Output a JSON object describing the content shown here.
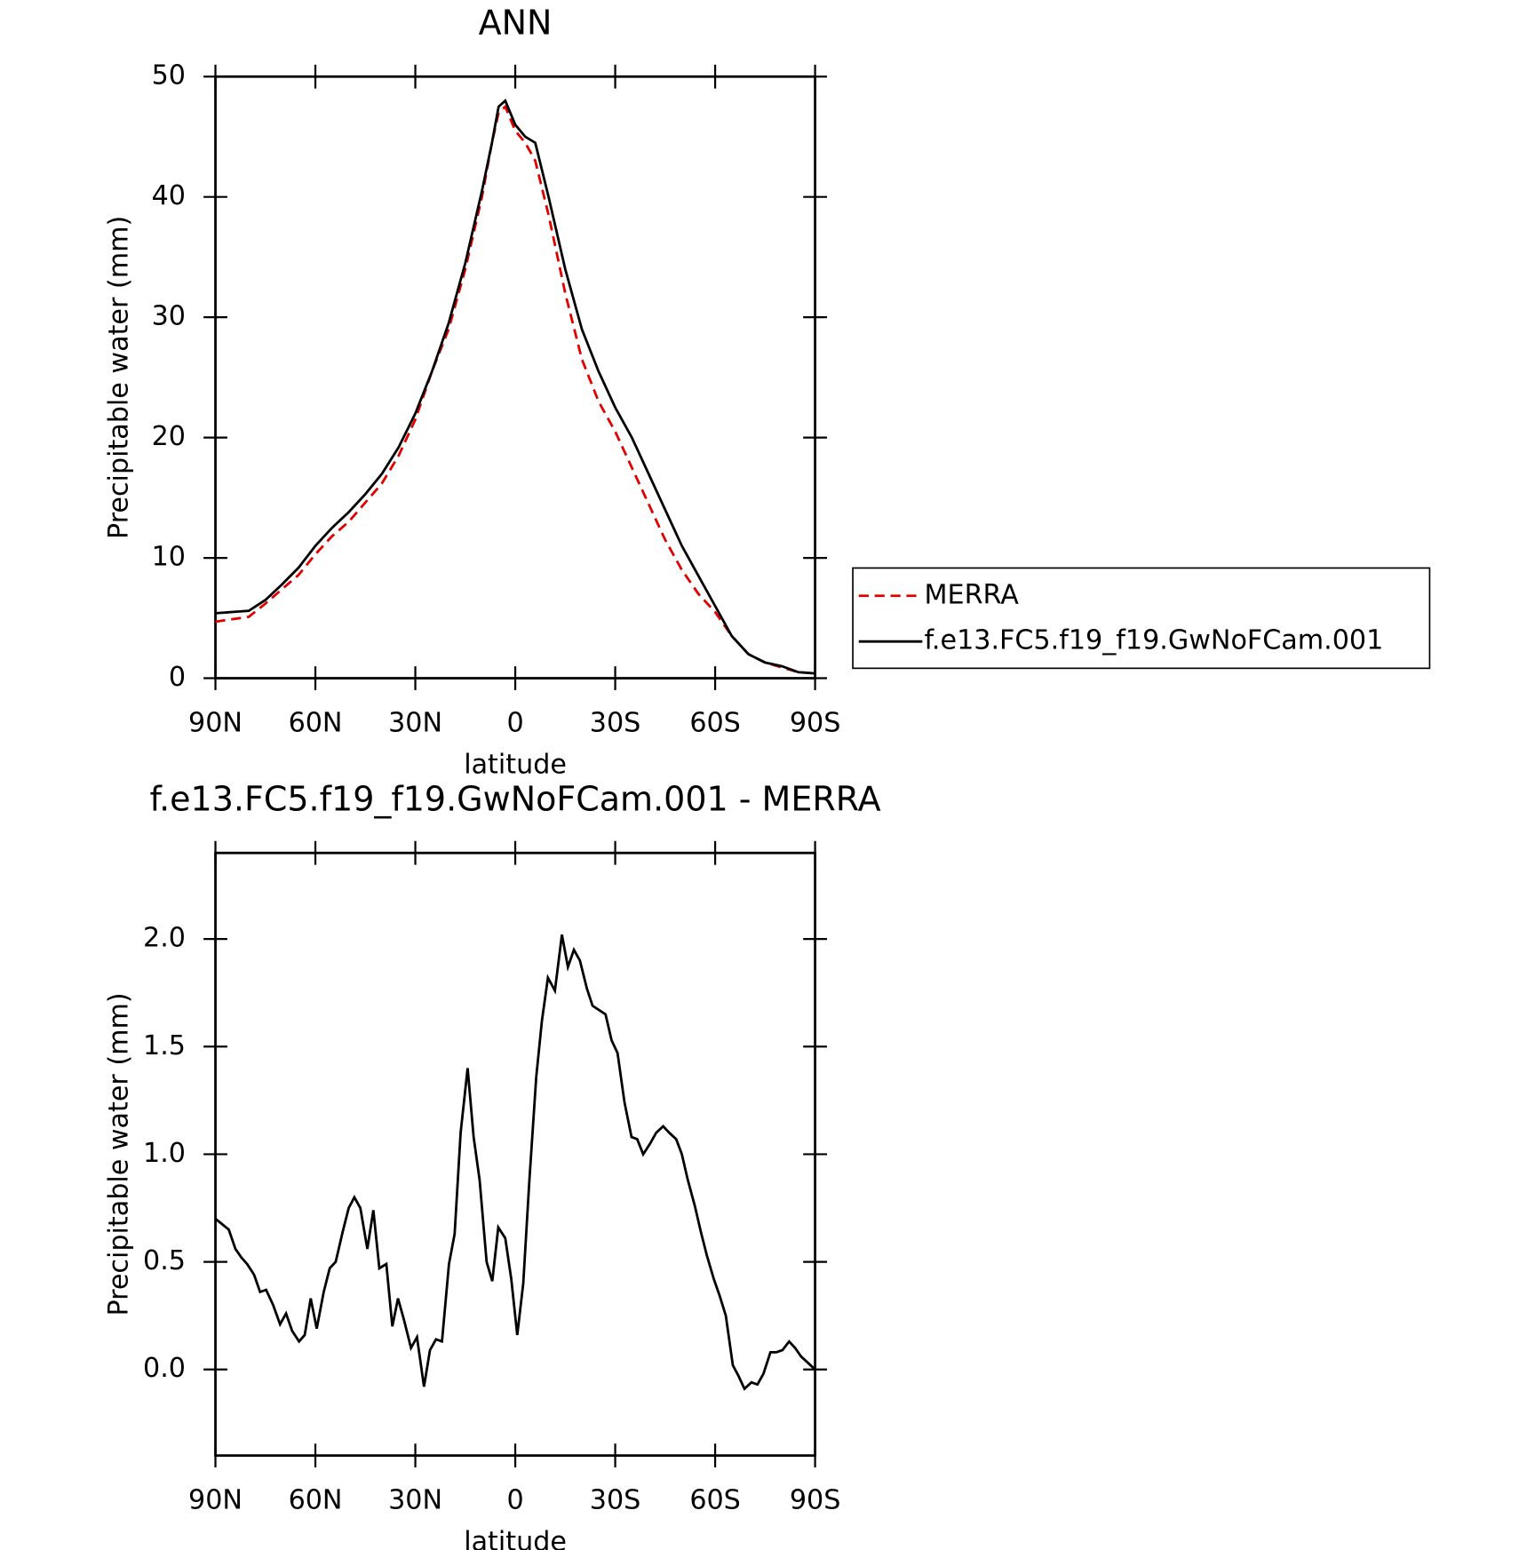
{
  "chart_data": [
    {
      "type": "line",
      "title": "ANN",
      "xlabel": "latitude",
      "ylabel": "Precipitable water (mm)",
      "x": [
        90,
        85,
        80,
        75,
        70,
        65,
        60,
        55,
        50,
        45,
        40,
        35,
        30,
        25,
        20,
        15,
        10,
        7,
        5,
        3,
        0,
        -3,
        -6,
        -10,
        -15,
        -20,
        -25,
        -30,
        -35,
        -40,
        -45,
        -50,
        -55,
        -60,
        -65,
        -70,
        -75,
        -80,
        -85,
        -90
      ],
      "series": [
        {
          "name": "MERRA",
          "color": "#e00000",
          "dash": true,
          "values": [
            4.7,
            4.9,
            5.1,
            6.2,
            7.4,
            8.6,
            10.3,
            11.8,
            13,
            14.6,
            16.2,
            18.5,
            21.5,
            25.5,
            29,
            34,
            40,
            44.5,
            47,
            47.5,
            45.5,
            44.5,
            43,
            38.5,
            32,
            26.5,
            23,
            20.5,
            17.5,
            14.5,
            11.5,
            9,
            7,
            5.5,
            3.5,
            2,
            1.3,
            0.9,
            0.5,
            0.4
          ]
        },
        {
          "name": "f.e13.FC5.f19_f19.GwNoFCam.001",
          "color": "#000000",
          "dash": false,
          "values": [
            5.4,
            5.5,
            5.6,
            6.5,
            7.8,
            9.2,
            11,
            12.5,
            13.8,
            15.3,
            17,
            19.2,
            22,
            25.5,
            29.5,
            34.5,
            40.5,
            44.5,
            47.5,
            48,
            46,
            45,
            44.5,
            40,
            34,
            29,
            25.5,
            22.5,
            20,
            17,
            14,
            11,
            8.5,
            6,
            3.5,
            2,
            1.3,
            1,
            0.5,
            0.4
          ]
        }
      ],
      "xlim": [
        90,
        -90
      ],
      "xticks": [
        {
          "value": 90,
          "label": "90N"
        },
        {
          "value": 60,
          "label": "60N"
        },
        {
          "value": 30,
          "label": "30N"
        },
        0,
        {
          "value": -30,
          "label": "30S"
        },
        {
          "value": -60,
          "label": "60S"
        },
        {
          "value": -90,
          "label": "90S"
        }
      ],
      "ylim": [
        0,
        50
      ],
      "yticks": [
        0,
        10,
        20,
        30,
        40,
        50
      ],
      "legend": "right"
    },
    {
      "type": "line",
      "title": "f.e13.FC5.f19_f19.GwNoFCam.001 - MERRA",
      "xlabel": "latitude",
      "ylabel": "Precipitable water (mm)",
      "x": [
        90,
        86,
        84,
        82.2,
        80.5,
        78.4,
        76.6,
        74.8,
        72.7,
        70.6,
        68.8,
        67,
        64.9,
        63.2,
        61.4,
        59.6,
        57.5,
        55.7,
        53.9,
        51.8,
        50,
        48.3,
        46.5,
        44.4,
        42.6,
        40.8,
        38.7,
        36.9,
        35.2,
        33.4,
        31.3,
        29.5,
        27.4,
        25.6,
        23.8,
        22,
        19.9,
        18.2,
        16.4,
        14.3,
        12.5,
        10.7,
        8.6,
        6.9,
        5.1,
        3,
        1.2,
        -0.6,
        -2.4,
        -4.2,
        -6.3,
        -8,
        -9.8,
        -11.9,
        -14,
        -15.8,
        -17.6,
        -19.4,
        -21.5,
        -23.2,
        -27.1,
        -28.9,
        -30.7,
        -32.8,
        -34.9,
        -36.6,
        -38.4,
        -40.5,
        -42.3,
        -44.4,
        -46.2,
        -48.3,
        -50,
        -51.8,
        -53.9,
        -55.7,
        -57.5,
        -59.6,
        -61.4,
        -63.2,
        -65.3,
        -67,
        -68.8,
        -70.9,
        -72.7,
        -74.5,
        -76.6,
        -78.4,
        -80.2,
        -82.2,
        -84,
        -85.8,
        -87.9,
        -90
      ],
      "series": [
        {
          "color": "#000000",
          "dash": false,
          "values": [
            0.7,
            0.65,
            0.56,
            0.52,
            0.49,
            0.44,
            0.36,
            0.37,
            0.3,
            0.21,
            0.26,
            0.18,
            0.13,
            0.16,
            0.33,
            0.19,
            0.36,
            0.47,
            0.5,
            0.64,
            0.75,
            0.8,
            0.75,
            0.56,
            0.74,
            0.47,
            0.49,
            0.2,
            0.33,
            0.23,
            0.1,
            0.15,
            -0.08,
            0.09,
            0.14,
            0.13,
            0.49,
            0.63,
            1.1,
            1.4,
            1.08,
            0.88,
            0.5,
            0.41,
            0.66,
            0.61,
            0.42,
            0.16,
            0.4,
            0.87,
            1.36,
            1.62,
            1.82,
            1.76,
            2.02,
            1.87,
            1.95,
            1.9,
            1.77,
            1.69,
            1.65,
            1.53,
            1.47,
            1.24,
            1.08,
            1.07,
            1,
            1.05,
            1.1,
            1.13,
            1.1,
            1.07,
            1,
            0.88,
            0.76,
            0.64,
            0.53,
            0.42,
            0.34,
            0.25,
            0.02,
            -0.03,
            -0.09,
            -0.06,
            -0.07,
            -0.02,
            0.08,
            0.08,
            0.09,
            0.13,
            0.1,
            0.06,
            0.03,
            0
          ]
        }
      ],
      "xlim": [
        90,
        -90
      ],
      "xticks": [
        {
          "value": 90,
          "label": "90N"
        },
        {
          "value": 60,
          "label": "60N"
        },
        {
          "value": 30,
          "label": "30N"
        },
        0,
        {
          "value": -30,
          "label": "30S"
        },
        {
          "value": -60,
          "label": "60S"
        },
        {
          "value": -90,
          "label": "90S"
        }
      ],
      "ylim": [
        -0.4,
        2.4
      ],
      "yticks": [
        {
          "value": 0,
          "label": "0.0"
        },
        0.5,
        {
          "value": 1,
          "label": "1.0"
        },
        1.5,
        {
          "value": 2,
          "label": "2.0"
        }
      ]
    }
  ]
}
